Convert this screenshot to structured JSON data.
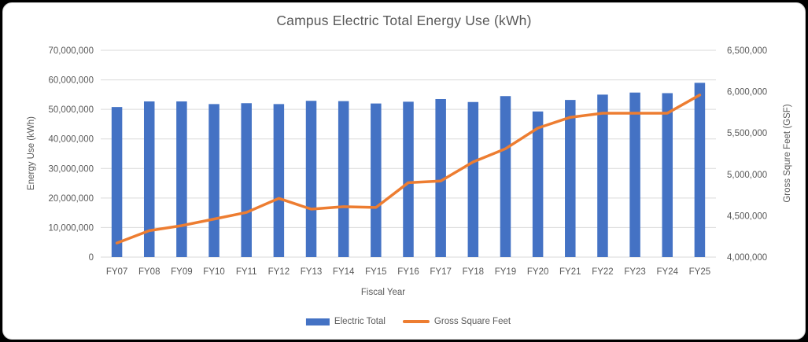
{
  "window": {
    "background": "#000000",
    "card_background": "#ffffff",
    "card_border": "#cfcfcf"
  },
  "chart_data": {
    "type": "combo",
    "title": "Campus Electric Total Energy Use (kWh)",
    "categories": [
      "FY07",
      "FY08",
      "FY09",
      "FY10",
      "FY11",
      "FY12",
      "FY13",
      "FY14",
      "FY15",
      "FY16",
      "FY17",
      "FY18",
      "FY19",
      "FY20",
      "FY21",
      "FY22",
      "FY23",
      "FY24",
      "FY25"
    ],
    "series": [
      {
        "name": "Electric Total",
        "type": "bar",
        "axis": "left",
        "color": "#4472C4",
        "values": [
          50800000,
          52700000,
          52700000,
          51800000,
          52100000,
          51800000,
          52900000,
          52800000,
          52000000,
          52600000,
          53500000,
          52500000,
          54500000,
          49300000,
          53200000,
          55000000,
          55700000,
          55500000,
          59000000
        ]
      },
      {
        "name": "Gross Square Feet",
        "type": "line",
        "axis": "right",
        "color": "#ED7D31",
        "values": [
          4170000,
          4320000,
          4380000,
          4460000,
          4540000,
          4710000,
          4580000,
          4610000,
          4600000,
          4900000,
          4920000,
          5150000,
          5310000,
          5560000,
          5690000,
          5740000,
          5740000,
          5740000,
          5960000
        ]
      }
    ],
    "x_axis": {
      "title": "Fiscal Year"
    },
    "y_left": {
      "title": "Energy Use (kWh)",
      "min": 0,
      "max": 70000000,
      "step": 10000000
    },
    "y_right": {
      "title": "Gross Squre Feet (GSF)",
      "min": 4000000,
      "max": 6500000,
      "step": 500000
    },
    "grid": true,
    "legend_position": "bottom",
    "text_color": "#595959",
    "grid_color": "#D9D9D9"
  }
}
